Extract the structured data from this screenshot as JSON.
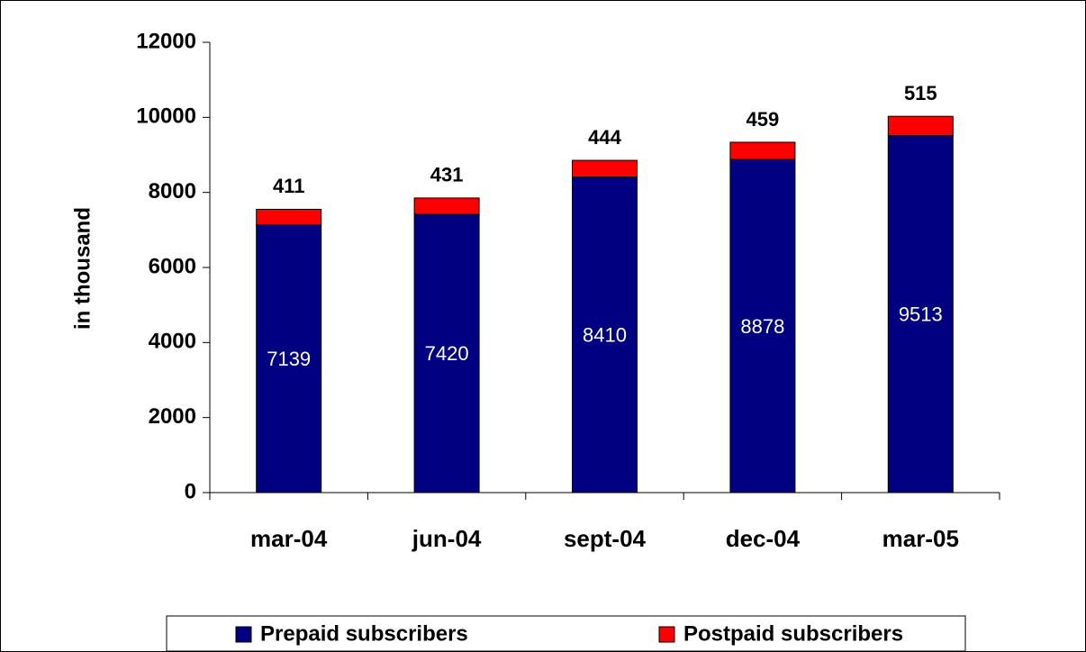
{
  "chart_data": {
    "type": "stacked_bar",
    "y_label": "in thousand",
    "categories": [
      "mar-04",
      "jun-04",
      "sept-04",
      "dec-04",
      "mar-05"
    ],
    "series": [
      {
        "name": "Prepaid subscribers",
        "color": "#000080",
        "values": [
          7139,
          7420,
          8410,
          8878,
          9513
        ]
      },
      {
        "name": "Postpaid subscribers",
        "color": "#ff0000",
        "values": [
          411,
          431,
          444,
          459,
          515
        ]
      }
    ],
    "ylim": [
      0,
      12000
    ],
    "yticks": [
      0,
      2000,
      4000,
      6000,
      8000,
      10000,
      12000
    ],
    "grid": false,
    "legend": "bottom"
  }
}
